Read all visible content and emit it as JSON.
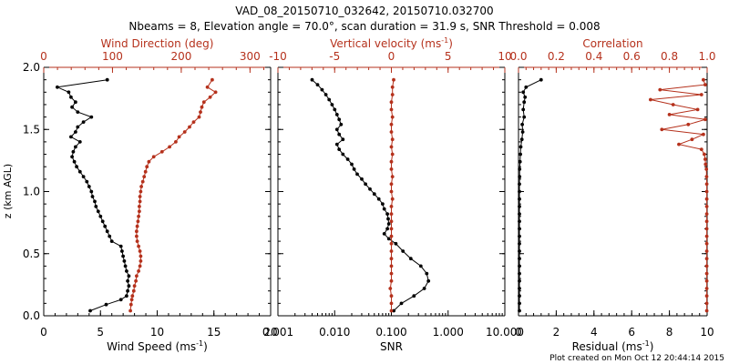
{
  "colors": {
    "red": "#b5311c",
    "black": "#000000"
  },
  "title": {
    "line1": "VAD_08_20150710_032642, 20150710.032700",
    "line2": "Nbeams = 8, Elevation angle = 70.0°, scan duration = 31.9 s, SNR Threshold = 0.008"
  },
  "footer": "Plot created on Mon Oct 12 20:44:14 2015",
  "ylabel": "z (km AGL)",
  "ylim": [
    0,
    2
  ],
  "yticks": [
    "0.0",
    "0.5",
    "1.0",
    "1.5",
    "2.0"
  ],
  "chart_data": [
    {
      "type": "line",
      "panel": "left",
      "xlabel": "Wind Speed (ms",
      "xlabel_sup": "-1",
      "xlabel_end": ")",
      "xlim": [
        0,
        20
      ],
      "xticks": [
        "0",
        "5",
        "10",
        "15",
        "20"
      ],
      "top_label": "Wind Direction (deg)",
      "top_xlim": [
        0,
        330
      ],
      "top_xticks": [
        "0",
        "100",
        "200",
        "300"
      ],
      "series": [
        {
          "name": "Wind Speed",
          "color": "black",
          "z": [
            0.04,
            0.09,
            0.13,
            0.16,
            0.2,
            0.24,
            0.28,
            0.32,
            0.36,
            0.4,
            0.44,
            0.48,
            0.52,
            0.56,
            0.6,
            0.64,
            0.68,
            0.72,
            0.76,
            0.8,
            0.84,
            0.88,
            0.92,
            0.96,
            1.0,
            1.04,
            1.08,
            1.12,
            1.16,
            1.2,
            1.24,
            1.28,
            1.32,
            1.36,
            1.4,
            1.44,
            1.48,
            1.52,
            1.56,
            1.6,
            1.64,
            1.68,
            1.72,
            1.76,
            1.8,
            1.84,
            1.9
          ],
          "x": [
            4.1,
            5.5,
            6.8,
            7.3,
            7.4,
            7.5,
            7.4,
            7.5,
            7.3,
            7.2,
            7.1,
            7.0,
            6.9,
            6.8,
            6.0,
            5.8,
            5.6,
            5.4,
            5.2,
            5.0,
            4.8,
            4.6,
            4.5,
            4.3,
            4.2,
            4.0,
            3.8,
            3.5,
            3.2,
            2.9,
            2.7,
            2.5,
            2.6,
            2.8,
            3.2,
            2.4,
            2.8,
            3.0,
            3.5,
            4.2,
            3.0,
            2.5,
            2.8,
            2.4,
            2.2,
            1.2,
            5.6
          ]
        },
        {
          "name": "Wind Direction",
          "color": "red",
          "z": [
            0.04,
            0.09,
            0.13,
            0.16,
            0.2,
            0.24,
            0.28,
            0.32,
            0.36,
            0.4,
            0.44,
            0.48,
            0.52,
            0.56,
            0.6,
            0.64,
            0.68,
            0.72,
            0.76,
            0.8,
            0.84,
            0.88,
            0.92,
            0.96,
            1.0,
            1.04,
            1.08,
            1.12,
            1.16,
            1.2,
            1.24,
            1.28,
            1.32,
            1.36,
            1.4,
            1.44,
            1.48,
            1.52,
            1.56,
            1.6,
            1.64,
            1.68,
            1.72,
            1.76,
            1.8,
            1.84,
            1.9
          ],
          "x": [
            126,
            127,
            128,
            129,
            131,
            132,
            134,
            135,
            138,
            140,
            141,
            141,
            140,
            138,
            136,
            135,
            135,
            136,
            137,
            138,
            139,
            139,
            140,
            140,
            141,
            142,
            144,
            146,
            148,
            150,
            153,
            160,
            172,
            183,
            192,
            197,
            205,
            212,
            218,
            226,
            228,
            230,
            233,
            242,
            250,
            238,
            245
          ]
        }
      ]
    },
    {
      "type": "line",
      "panel": "middle",
      "xlabel": "SNR",
      "xscale": "log",
      "xlim": [
        0.001,
        10
      ],
      "xticks": [
        "0.001",
        "0.010",
        "0.100",
        "1.000",
        "10.000"
      ],
      "top_label": "Vertical velocity (ms",
      "top_label_sup": "-1",
      "top_label_end": ")",
      "top_xlim": [
        -10,
        10
      ],
      "top_xticks": [
        "-10",
        "-5",
        "0",
        "5",
        "10"
      ],
      "series": [
        {
          "name": "SNR",
          "color": "black",
          "z": [
            0.04,
            0.1,
            0.16,
            0.22,
            0.28,
            0.34,
            0.4,
            0.46,
            0.52,
            0.58,
            0.62,
            0.66,
            0.7,
            0.74,
            0.78,
            0.82,
            0.86,
            0.9,
            0.94,
            0.98,
            1.02,
            1.06,
            1.1,
            1.14,
            1.18,
            1.22,
            1.26,
            1.3,
            1.34,
            1.38,
            1.42,
            1.46,
            1.5,
            1.54,
            1.58,
            1.62,
            1.66,
            1.7,
            1.74,
            1.78,
            1.82,
            1.86,
            1.9
          ],
          "x": [
            0.11,
            0.15,
            0.25,
            0.38,
            0.45,
            0.42,
            0.33,
            0.22,
            0.16,
            0.12,
            0.09,
            0.075,
            0.085,
            0.09,
            0.088,
            0.085,
            0.075,
            0.07,
            0.06,
            0.05,
            0.042,
            0.035,
            0.03,
            0.025,
            0.022,
            0.02,
            0.017,
            0.014,
            0.012,
            0.011,
            0.014,
            0.012,
            0.011,
            0.013,
            0.012,
            0.011,
            0.01,
            0.009,
            0.008,
            0.007,
            0.006,
            0.005,
            0.004
          ]
        },
        {
          "name": "Vertical velocity",
          "color": "red",
          "z": [
            0.04,
            0.1,
            0.16,
            0.22,
            0.28,
            0.34,
            0.4,
            0.46,
            0.52,
            0.58,
            0.64,
            0.7,
            0.76,
            0.82,
            0.88,
            0.94,
            1.0,
            1.06,
            1.12,
            1.18,
            1.24,
            1.3,
            1.36,
            1.42,
            1.48,
            1.54,
            1.6,
            1.66,
            1.72,
            1.78,
            1.84,
            1.9
          ],
          "x": [
            0.0,
            0.0,
            0.0,
            -0.1,
            0.0,
            0.0,
            0.0,
            0.0,
            0.0,
            0.0,
            0.0,
            0.0,
            0.0,
            0.0,
            0.0,
            0.1,
            0.0,
            0.0,
            0.1,
            0.0,
            0.0,
            0.1,
            0.0,
            0.1,
            0.0,
            0.0,
            0.1,
            0.0,
            0.0,
            0.1,
            0.1,
            0.2
          ]
        }
      ]
    },
    {
      "type": "line",
      "panel": "right",
      "xlabel": "Residual (ms",
      "xlabel_sup": "-1",
      "xlabel_end": ")",
      "xlim": [
        0,
        10
      ],
      "xticks": [
        "0",
        "2",
        "4",
        "6",
        "8",
        "10"
      ],
      "top_label": "Correlation",
      "top_xlim": [
        0,
        1
      ],
      "top_xticks": [
        "0.0",
        "0.2",
        "0.4",
        "0.6",
        "0.8",
        "1.0"
      ],
      "series": [
        {
          "name": "Residual",
          "color": "black",
          "z": [
            0.04,
            0.1,
            0.16,
            0.22,
            0.28,
            0.34,
            0.4,
            0.46,
            0.52,
            0.58,
            0.64,
            0.7,
            0.76,
            0.82,
            0.88,
            0.94,
            1.0,
            1.06,
            1.12,
            1.18,
            1.24,
            1.3,
            1.36,
            1.42,
            1.48,
            1.54,
            1.6,
            1.66,
            1.72,
            1.76,
            1.8,
            1.84,
            1.9
          ],
          "x": [
            0.05,
            0.05,
            0.05,
            0.05,
            0.05,
            0.05,
            0.05,
            0.05,
            0.05,
            0.05,
            0.05,
            0.05,
            0.05,
            0.05,
            0.05,
            0.05,
            0.05,
            0.05,
            0.06,
            0.06,
            0.08,
            0.1,
            0.12,
            0.18,
            0.22,
            0.2,
            0.3,
            0.25,
            0.3,
            0.35,
            0.25,
            0.4,
            1.2
          ]
        },
        {
          "name": "Correlation",
          "color": "red",
          "z": [
            0.04,
            0.1,
            0.16,
            0.22,
            0.28,
            0.34,
            0.4,
            0.46,
            0.52,
            0.58,
            0.64,
            0.7,
            0.76,
            0.82,
            0.88,
            0.94,
            1.0,
            1.06,
            1.12,
            1.18,
            1.22,
            1.26,
            1.3,
            1.34,
            1.38,
            1.42,
            1.46,
            1.5,
            1.54,
            1.58,
            1.62,
            1.66,
            1.7,
            1.74,
            1.78,
            1.82,
            1.86,
            1.9
          ],
          "x": [
            0.998,
            0.998,
            0.998,
            0.998,
            0.998,
            0.998,
            0.998,
            0.998,
            0.998,
            0.998,
            0.998,
            0.998,
            0.998,
            0.998,
            0.998,
            0.998,
            0.998,
            0.998,
            0.997,
            0.996,
            0.992,
            0.99,
            0.985,
            0.97,
            0.85,
            0.92,
            0.98,
            0.76,
            0.9,
            0.99,
            0.8,
            0.95,
            0.82,
            0.7,
            0.97,
            0.75,
            0.99,
            0.98
          ]
        }
      ]
    }
  ]
}
